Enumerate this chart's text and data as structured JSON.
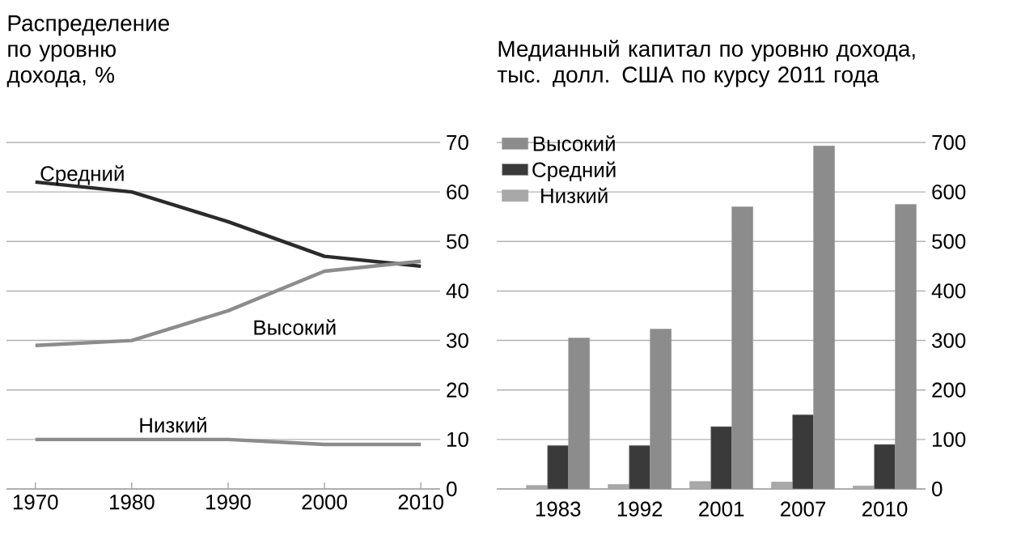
{
  "chart_data": [
    {
      "type": "line",
      "title": "Распределение по уровню дохода, %",
      "x": [
        1970,
        1980,
        1990,
        2000,
        2010
      ],
      "series": [
        {
          "name": "Средний",
          "color": "#2b2b2b",
          "values": [
            62,
            60,
            54,
            47,
            45
          ]
        },
        {
          "name": "Высокий",
          "color": "#8c8c8c",
          "values": [
            29,
            30,
            36,
            44,
            46
          ]
        },
        {
          "name": "Низкий",
          "color": "#8c8c8c",
          "values": [
            10,
            10,
            10,
            9,
            9
          ]
        }
      ],
      "xlim": [
        1967,
        2012
      ],
      "xticks": [
        1970,
        1980,
        1990,
        2000,
        2010
      ],
      "ylim": [
        0,
        70
      ],
      "yticks": [
        0,
        10,
        20,
        30,
        40,
        50,
        60,
        70
      ],
      "grid": "y"
    },
    {
      "type": "bar",
      "title": "Медианный капитал по уровню дохода, тыс. долл. США по курсу 2011 года",
      "categories": [
        "1983",
        "1992",
        "2001",
        "2007",
        "2010"
      ],
      "series": [
        {
          "name": "Низкий",
          "color": "#a8a8a8",
          "values": [
            7,
            9,
            15,
            14,
            6
          ]
        },
        {
          "name": "Средний",
          "color": "#3a3a3a",
          "values": [
            88,
            88,
            126,
            150,
            90
          ]
        },
        {
          "name": "Высокий",
          "color": "#8c8c8c",
          "values": [
            305,
            323,
            570,
            693,
            575
          ]
        }
      ],
      "ylim": [
        0,
        700
      ],
      "yticks": [
        0,
        100,
        200,
        300,
        400,
        500,
        600,
        700
      ],
      "grid": "y",
      "legend": "top left"
    }
  ]
}
